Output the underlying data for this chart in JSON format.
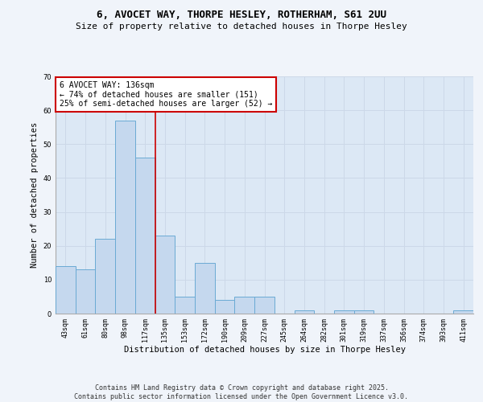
{
  "title": "6, AVOCET WAY, THORPE HESLEY, ROTHERHAM, S61 2UU",
  "subtitle": "Size of property relative to detached houses in Thorpe Hesley",
  "xlabel": "Distribution of detached houses by size in Thorpe Hesley",
  "ylabel": "Number of detached properties",
  "categories": [
    "43sqm",
    "61sqm",
    "80sqm",
    "98sqm",
    "117sqm",
    "135sqm",
    "153sqm",
    "172sqm",
    "190sqm",
    "209sqm",
    "227sqm",
    "245sqm",
    "264sqm",
    "282sqm",
    "301sqm",
    "319sqm",
    "337sqm",
    "356sqm",
    "374sqm",
    "393sqm",
    "411sqm"
  ],
  "values": [
    14,
    13,
    22,
    57,
    46,
    23,
    5,
    15,
    4,
    5,
    5,
    0,
    1,
    0,
    1,
    1,
    0,
    0,
    0,
    0,
    1
  ],
  "bar_color": "#c5d8ee",
  "bar_edge_color": "#6aaad4",
  "grid_color": "#ccd8e8",
  "bg_color": "#dce8f5",
  "annotation_box_text": "6 AVOCET WAY: 136sqm\n← 74% of detached houses are smaller (151)\n25% of semi-detached houses are larger (52) →",
  "red_line_x": 4.5,
  "ylim": [
    0,
    70
  ],
  "yticks": [
    0,
    10,
    20,
    30,
    40,
    50,
    60,
    70
  ],
  "annotation_box_color": "#ffffff",
  "annotation_box_edge": "#cc0000",
  "red_line_color": "#cc0000",
  "footer_text": "Contains HM Land Registry data © Crown copyright and database right 2025.\nContains public sector information licensed under the Open Government Licence v3.0.",
  "title_fontsize": 9,
  "subtitle_fontsize": 8,
  "axis_label_fontsize": 7.5,
  "tick_fontsize": 6,
  "annotation_fontsize": 7,
  "footer_fontsize": 6
}
